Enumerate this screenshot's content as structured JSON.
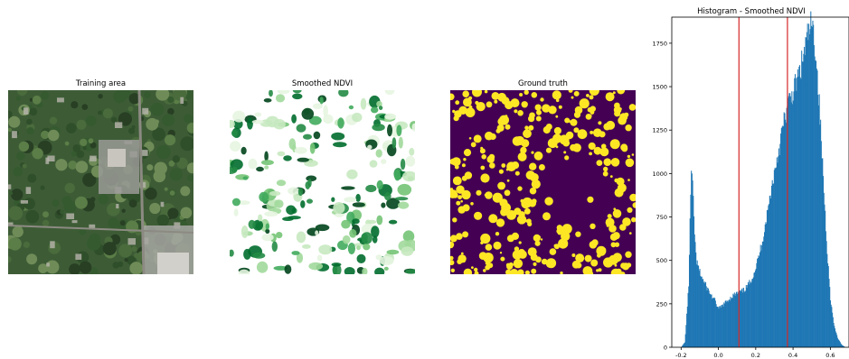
{
  "panels": {
    "aerial_title": "Training area",
    "ndvi_title": "Smoothed NDVI",
    "truth_title": "Ground truth",
    "truth_colors": {
      "background": "#440154",
      "foreground": "#fde725"
    },
    "ndvi_colors": {
      "light": "#e5f5e0",
      "mid": "#74c476",
      "dark": "#00441b"
    }
  },
  "chart_data": {
    "type": "bar",
    "title": "Histogram - Smoothed NDVI",
    "xlabel": "",
    "ylabel": "",
    "xlim": [
      -0.25,
      0.7
    ],
    "ylim": [
      0,
      1900
    ],
    "xticks": [
      -0.2,
      0.0,
      0.2,
      0.4,
      0.6
    ],
    "xtick_labels": [
      "-0.2",
      "0.0",
      "0.2",
      "0.4",
      "0.6"
    ],
    "yticks": [
      0,
      250,
      500,
      750,
      1000,
      1250,
      1500,
      1750
    ],
    "ytick_labels": [
      "0",
      "250",
      "500",
      "750",
      "1000",
      "1250",
      "1500",
      "1750"
    ],
    "bar_color": "#1f77b4",
    "threshold_color": "#d62728",
    "thresholds": [
      0.11,
      0.37
    ],
    "profile": {
      "x": [
        -0.2,
        -0.18,
        -0.16,
        -0.15,
        -0.145,
        -0.14,
        -0.13,
        -0.12,
        -0.1,
        -0.08,
        -0.06,
        -0.04,
        -0.02,
        0.0,
        0.02,
        0.04,
        0.06,
        0.08,
        0.1,
        0.12,
        0.14,
        0.16,
        0.18,
        0.2,
        0.22,
        0.24,
        0.26,
        0.28,
        0.3,
        0.32,
        0.34,
        0.36,
        0.38,
        0.4,
        0.42,
        0.44,
        0.46,
        0.48,
        0.5,
        0.52,
        0.54,
        0.56,
        0.58,
        0.6,
        0.62,
        0.64,
        0.66,
        0.68
      ],
      "y": [
        0,
        30,
        350,
        850,
        1030,
        950,
        700,
        500,
        430,
        380,
        340,
        300,
        270,
        220,
        240,
        260,
        280,
        300,
        310,
        320,
        330,
        360,
        400,
        460,
        540,
        640,
        760,
        890,
        1010,
        1120,
        1240,
        1340,
        1420,
        1470,
        1530,
        1600,
        1700,
        1800,
        1860,
        1720,
        1400,
        1000,
        600,
        280,
        120,
        50,
        15,
        0
      ]
    }
  }
}
